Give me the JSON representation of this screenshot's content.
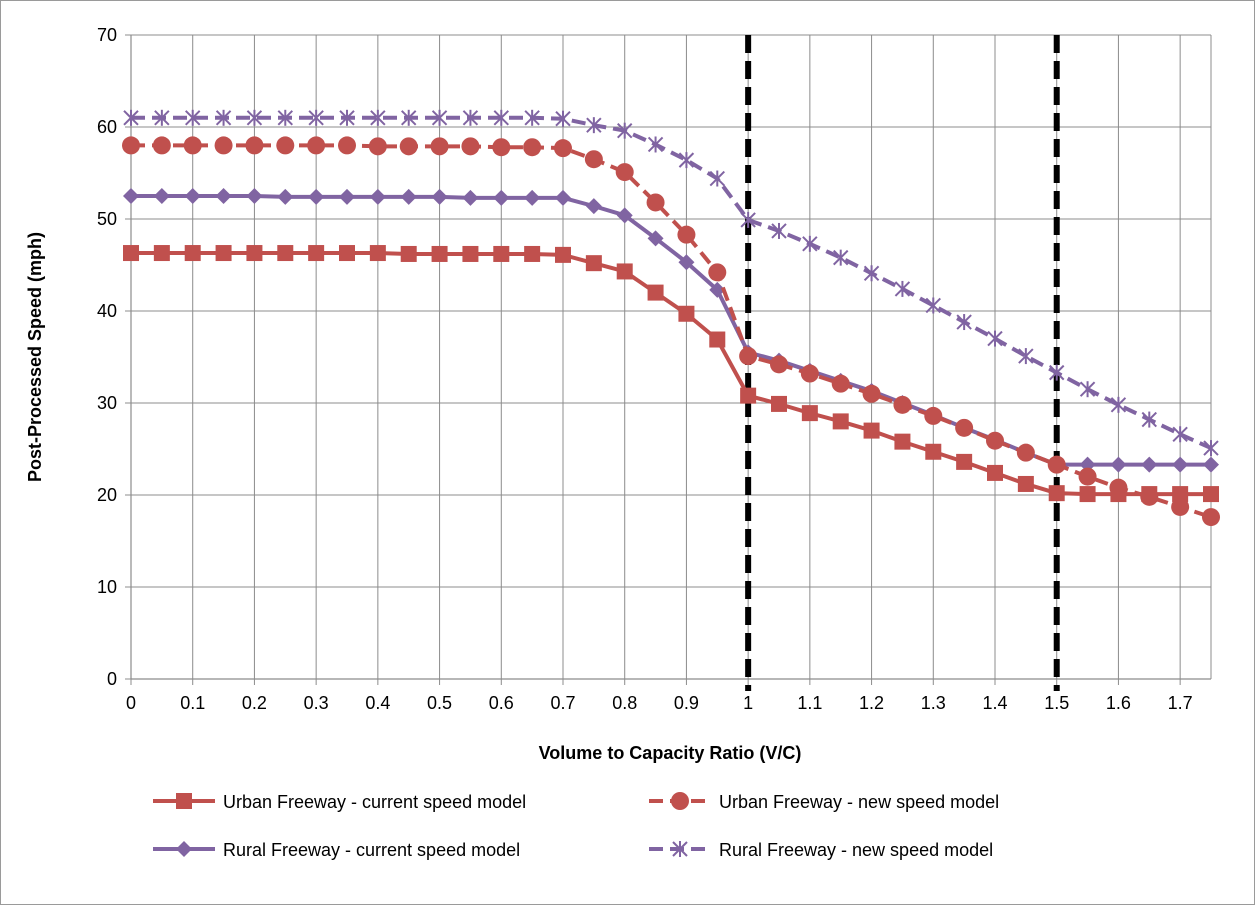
{
  "chart_data": {
    "type": "line",
    "title": "",
    "xlabel": "Volume to Capacity Ratio (V/C)",
    "ylabel": "Post-Processed Speed (mph)",
    "xlim": [
      0,
      1.75
    ],
    "ylim": [
      0,
      70
    ],
    "x_ticks": [
      "0",
      "0.1",
      "0.2",
      "0.3",
      "0.4",
      "0.5",
      "0.6",
      "0.7",
      "0.8",
      "0.9",
      "1",
      "1.1",
      "1.2",
      "1.3",
      "1.4",
      "1.5",
      "1.6",
      "1.7"
    ],
    "y_ticks": [
      "0",
      "10",
      "20",
      "30",
      "40",
      "50",
      "60",
      "70"
    ],
    "grid": true,
    "legend_position": "bottom",
    "x": [
      0,
      0.05,
      0.1,
      0.15,
      0.2,
      0.25,
      0.3,
      0.35,
      0.4,
      0.45,
      0.5,
      0.55,
      0.6,
      0.65,
      0.7,
      0.75,
      0.8,
      0.85,
      0.9,
      0.95,
      1.0,
      1.05,
      1.1,
      1.15,
      1.2,
      1.25,
      1.3,
      1.35,
      1.4,
      1.45,
      1.5,
      1.55,
      1.6,
      1.65,
      1.7,
      1.75
    ],
    "series": [
      {
        "name": "Urban Freeway - current speed model",
        "color": "#c0504d",
        "dash": false,
        "marker": "square",
        "values": [
          46.3,
          46.3,
          46.3,
          46.3,
          46.3,
          46.3,
          46.3,
          46.3,
          46.3,
          46.2,
          46.2,
          46.2,
          46.2,
          46.2,
          46.1,
          45.2,
          44.3,
          42.0,
          39.7,
          36.9,
          30.8,
          29.9,
          28.9,
          28.0,
          27.0,
          25.8,
          24.7,
          23.6,
          22.4,
          21.2,
          20.2,
          20.1,
          20.1,
          20.1,
          20.1,
          20.1
        ]
      },
      {
        "name": "Urban Freeway - new speed model",
        "color": "#c0504d",
        "dash": true,
        "marker": "circle",
        "values": [
          58.0,
          58.0,
          58.0,
          58.0,
          58.0,
          58.0,
          58.0,
          58.0,
          57.9,
          57.9,
          57.9,
          57.9,
          57.8,
          57.8,
          57.7,
          56.5,
          55.1,
          51.8,
          48.3,
          44.2,
          35.1,
          34.2,
          33.2,
          32.1,
          31.0,
          29.8,
          28.6,
          27.3,
          25.9,
          24.6,
          23.3,
          22.0,
          20.8,
          19.8,
          18.7,
          17.6
        ]
      },
      {
        "name": "Rural Freeway - current speed model",
        "color": "#8064a2",
        "dash": false,
        "marker": "diamond",
        "values": [
          52.5,
          52.5,
          52.5,
          52.5,
          52.5,
          52.4,
          52.4,
          52.4,
          52.4,
          52.4,
          52.4,
          52.3,
          52.3,
          52.3,
          52.3,
          51.4,
          50.4,
          47.9,
          45.3,
          42.3,
          35.5,
          34.6,
          33.5,
          32.4,
          31.3,
          30.0,
          28.7,
          27.3,
          26.0,
          24.6,
          23.3,
          23.3,
          23.3,
          23.3,
          23.3,
          23.3
        ]
      },
      {
        "name": "Rural Freeway - new speed model",
        "color": "#8064a2",
        "dash": true,
        "marker": "star",
        "values": [
          61.0,
          61.0,
          61.0,
          61.0,
          61.0,
          61.0,
          61.0,
          61.0,
          61.0,
          61.0,
          61.0,
          61.0,
          61.0,
          61.0,
          60.9,
          60.2,
          59.6,
          58.1,
          56.4,
          54.4,
          49.9,
          48.7,
          47.3,
          45.8,
          44.1,
          42.4,
          40.6,
          38.8,
          37.0,
          35.1,
          33.3,
          31.5,
          29.8,
          28.2,
          26.6,
          25.1
        ]
      }
    ],
    "reference_lines": [
      {
        "x": 1.0,
        "style": "dashed",
        "color": "#000000"
      },
      {
        "x": 1.5,
        "style": "dashed",
        "color": "#000000"
      }
    ]
  }
}
